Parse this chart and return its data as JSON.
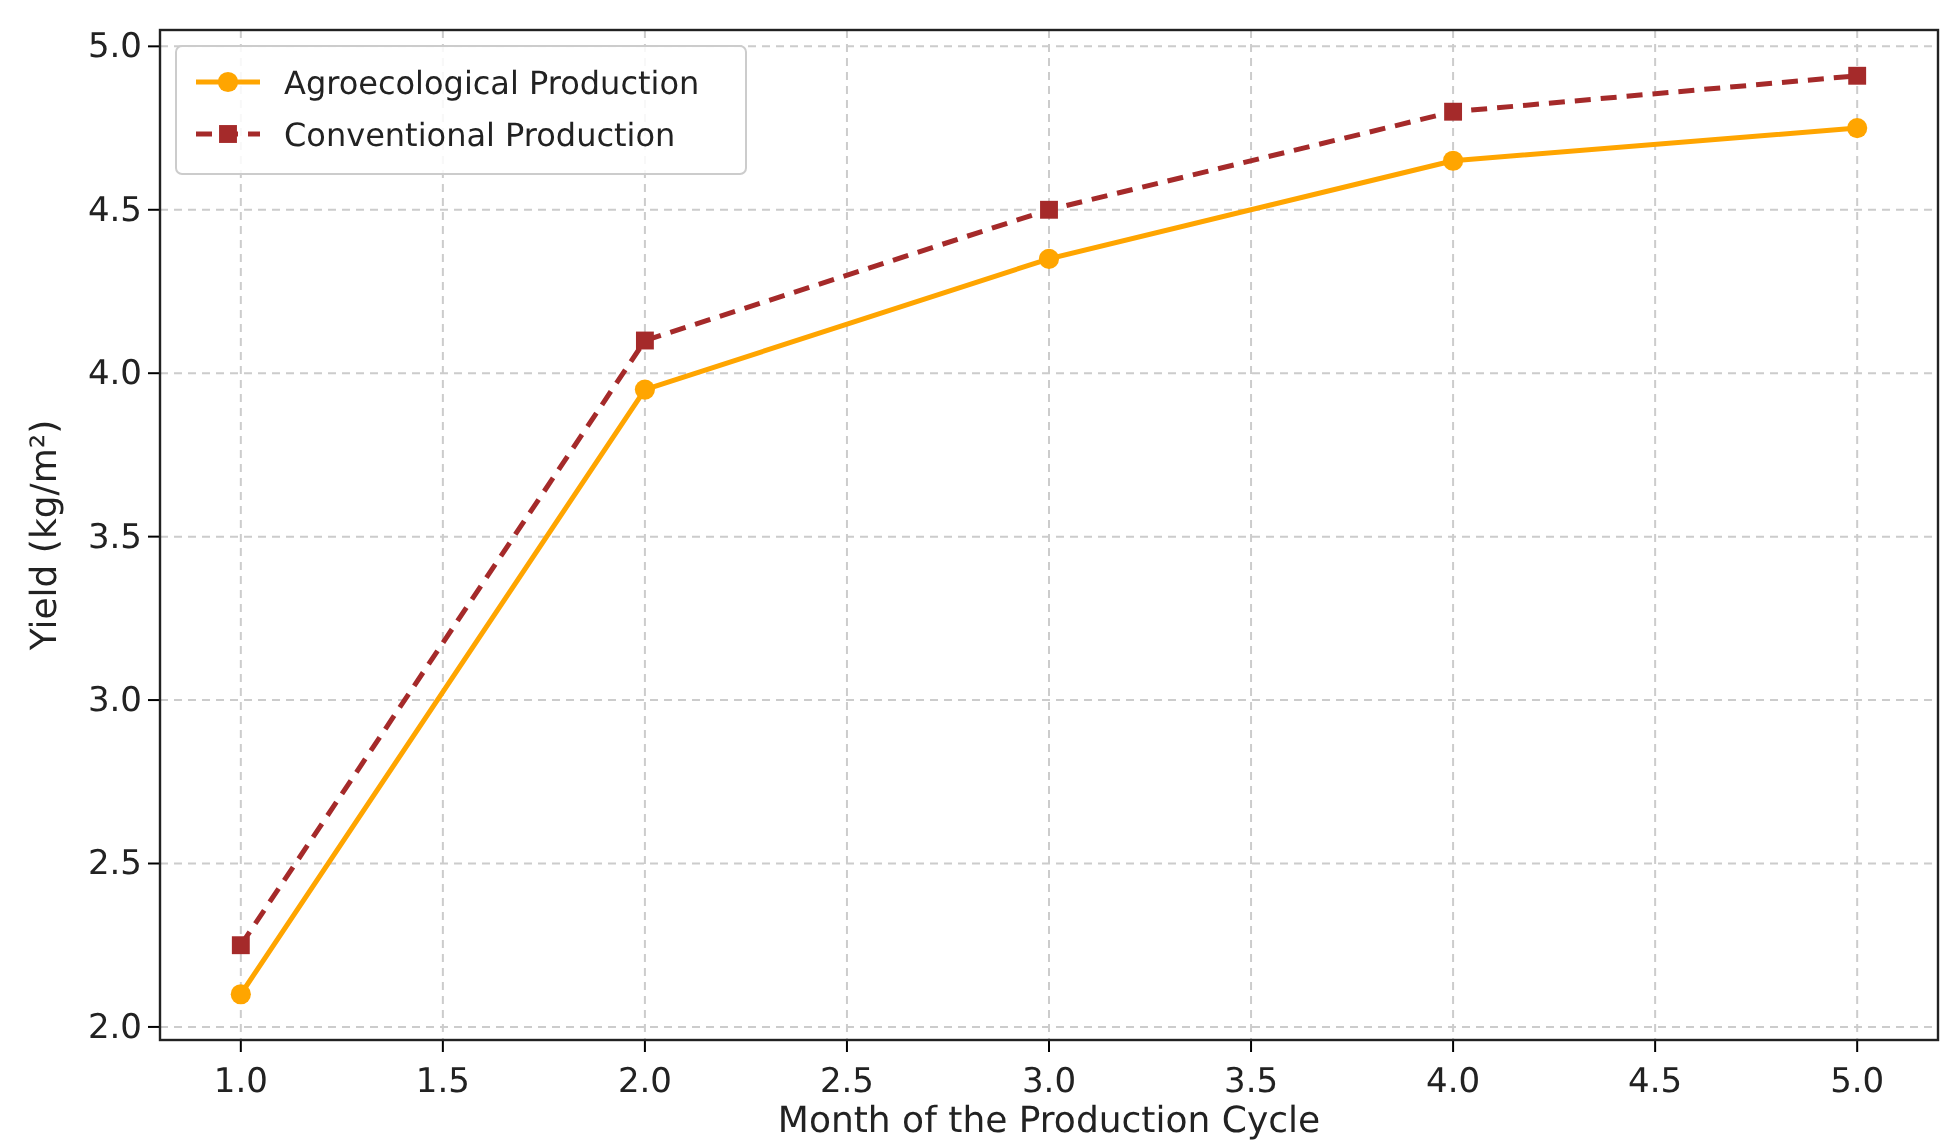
{
  "chart_data": {
    "type": "line",
    "xlabel": "Month of the Production Cycle",
    "ylabel": "Yield (kg/m²)",
    "x": [
      1,
      2,
      3,
      4,
      5
    ],
    "series": [
      {
        "name": "Agroecological Production",
        "color": "#ffa500",
        "values": [
          2.1,
          3.95,
          4.35,
          4.65,
          4.75
        ],
        "marker": "circle",
        "line_style": "solid"
      },
      {
        "name": "Conventional Production",
        "color": "#a52a2a",
        "values": [
          2.25,
          4.1,
          4.5,
          4.8,
          4.91
        ],
        "marker": "square",
        "line_style": "dashed"
      }
    ],
    "xlim": [
      0.8,
      5.2
    ],
    "xticks": [
      {
        "value": 1,
        "label": "1.0"
      },
      {
        "value": 1.5,
        "label": "1.5"
      },
      {
        "value": 2,
        "label": "2.0"
      },
      {
        "value": 2.5,
        "label": "2.5"
      },
      {
        "value": 3,
        "label": "3.0"
      },
      {
        "value": 3.5,
        "label": "3.5"
      },
      {
        "value": 4,
        "label": "4.0"
      },
      {
        "value": 4.5,
        "label": "4.5"
      },
      {
        "value": 5,
        "label": "5.0"
      }
    ],
    "ylim": [
      1.96,
      5.05
    ],
    "yticks": [
      {
        "value": 2,
        "label": "2.0"
      },
      {
        "value": 2.5,
        "label": "2.5"
      },
      {
        "value": 3,
        "label": "3.0"
      },
      {
        "value": 3.5,
        "label": "3.5"
      },
      {
        "value": 4,
        "label": "4.0"
      },
      {
        "value": 4.5,
        "label": "4.5"
      },
      {
        "value": 5,
        "label": "5.0"
      }
    ],
    "grid": true,
    "legend": "top left"
  }
}
